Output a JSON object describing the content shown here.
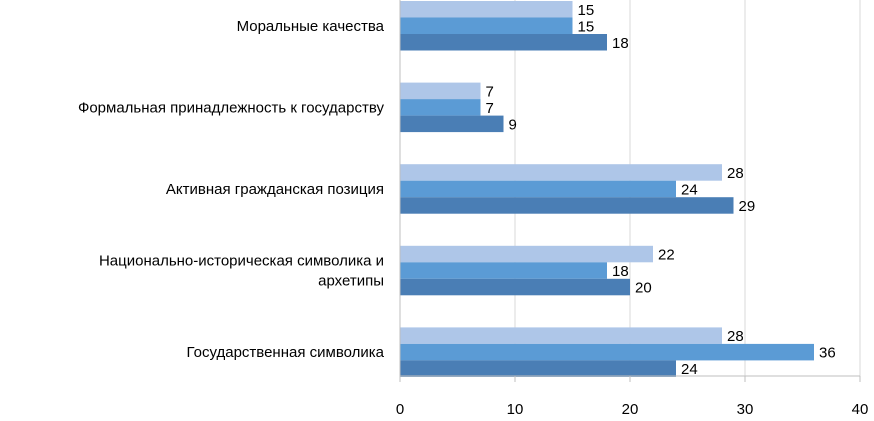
{
  "chart_data": {
    "type": "bar",
    "orientation": "horizontal",
    "categories": [
      [
        "Моральные качества"
      ],
      [
        "Формальная принадлежность к государству"
      ],
      [
        "Активная гражданская позиция"
      ],
      [
        "Национально-историческая символика и",
        "архетипы"
      ],
      [
        "Государственная символика"
      ]
    ],
    "series": [
      {
        "color": "#aec6e8",
        "values": [
          15,
          7,
          28,
          22,
          28
        ]
      },
      {
        "color": "#5b9bd5",
        "values": [
          15,
          7,
          24,
          18,
          36
        ]
      },
      {
        "color": "#4a7eb5",
        "values": [
          18,
          9,
          29,
          20,
          24
        ]
      }
    ],
    "xlim": [
      0,
      40
    ],
    "xticks": [
      0,
      10,
      20,
      30,
      40
    ],
    "grid": "vertical",
    "legend": "none",
    "data_labels": true
  }
}
